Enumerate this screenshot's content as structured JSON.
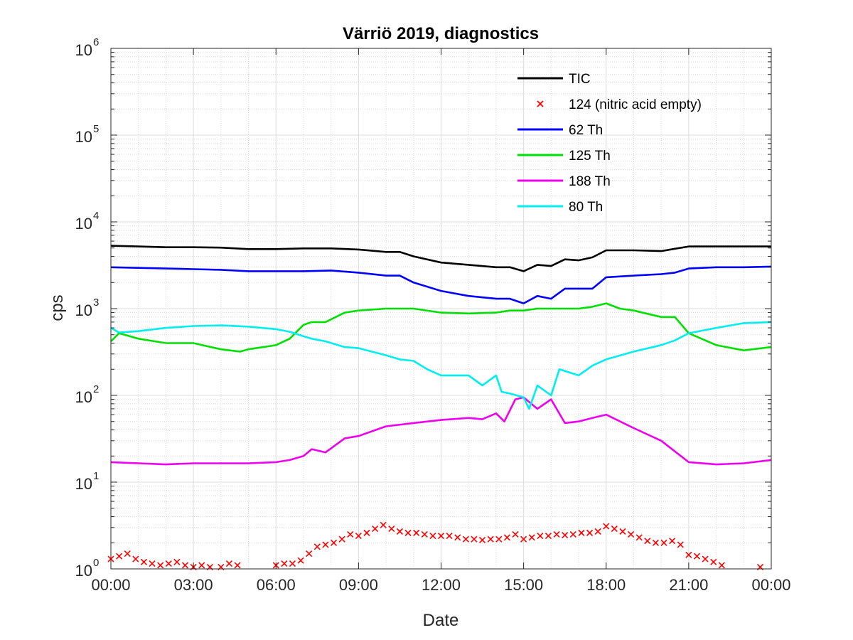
{
  "chart_data": {
    "type": "line",
    "title": "Värriö 2019, diagnostics",
    "xlabel": "Date",
    "ylabel": "cps",
    "yscale": "log",
    "ylim": [
      1,
      1000000
    ],
    "xlim": [
      0,
      24
    ],
    "x_tick_labels": [
      "00:00",
      "03:00",
      "06:00",
      "09:00",
      "12:00",
      "15:00",
      "18:00",
      "21:00",
      "00:00"
    ],
    "x_tick_hours": [
      0,
      3,
      6,
      9,
      12,
      15,
      18,
      21,
      24
    ],
    "y_tick_exponents": [
      "0",
      "1",
      "2",
      "3",
      "4",
      "5",
      "6"
    ],
    "y_tick_base": "10",
    "y_tick_values": [
      1,
      10,
      100,
      1000,
      10000,
      100000,
      1000000
    ],
    "grid": true,
    "minor_grid": true,
    "legend_position": "top-right",
    "series": [
      {
        "name": "TIC",
        "color": "#000000",
        "style": "line",
        "x": [
          0,
          1,
          2,
          3,
          4,
          5,
          6,
          7,
          8,
          9,
          10,
          10.5,
          11,
          12,
          13,
          14,
          14.5,
          15,
          15.5,
          16,
          16.5,
          17,
          17.5,
          18,
          19,
          20,
          20.5,
          21,
          22,
          23,
          24
        ],
        "y": [
          5300,
          5200,
          5100,
          5100,
          5050,
          4850,
          4850,
          4950,
          4950,
          4800,
          4500,
          4500,
          4000,
          3400,
          3200,
          3000,
          3000,
          2700,
          3200,
          3100,
          3700,
          3600,
          3900,
          4700,
          4700,
          4600,
          4900,
          5200,
          5200,
          5200,
          5200
        ]
      },
      {
        "name": "124 (nitric acid empty)",
        "color": "#ff0000",
        "style": "marker",
        "x": [
          0,
          0.3,
          0.6,
          0.9,
          1.2,
          1.5,
          1.8,
          2.1,
          2.4,
          2.7,
          3.0,
          3.3,
          3.6,
          4.0,
          4.3,
          4.6,
          6.0,
          6.3,
          6.6,
          6.9,
          7.2,
          7.5,
          7.8,
          8.1,
          8.4,
          8.7,
          9.0,
          9.3,
          9.6,
          9.9,
          10.2,
          10.5,
          10.8,
          11.1,
          11.4,
          11.7,
          12.0,
          12.3,
          12.6,
          12.9,
          13.2,
          13.5,
          13.8,
          14.1,
          14.4,
          14.7,
          15.0,
          15.3,
          15.6,
          15.9,
          16.2,
          16.5,
          16.8,
          17.1,
          17.4,
          17.7,
          18.0,
          18.3,
          18.6,
          18.9,
          19.2,
          19.5,
          19.8,
          20.1,
          20.4,
          20.7,
          21.0,
          21.3,
          21.6,
          21.9,
          22.2,
          23.6
        ],
        "y": [
          1.3,
          1.4,
          1.5,
          1.3,
          1.2,
          1.15,
          1.1,
          1.15,
          1.2,
          1.1,
          1.05,
          1.1,
          1.05,
          1.05,
          1.15,
          1.1,
          1.1,
          1.15,
          1.15,
          1.25,
          1.5,
          1.8,
          1.9,
          2.0,
          2.2,
          2.5,
          2.4,
          2.6,
          2.9,
          3.2,
          2.9,
          2.7,
          2.6,
          2.6,
          2.5,
          2.4,
          2.4,
          2.4,
          2.3,
          2.2,
          2.2,
          2.15,
          2.2,
          2.2,
          2.3,
          2.5,
          2.2,
          2.3,
          2.4,
          2.4,
          2.5,
          2.45,
          2.5,
          2.6,
          2.6,
          2.7,
          3.1,
          2.9,
          2.7,
          2.5,
          2.3,
          2.1,
          2.0,
          2.0,
          2.1,
          1.9,
          1.45,
          1.4,
          1.3,
          1.2,
          1.1,
          1.05
        ]
      },
      {
        "name": "62 Th",
        "color": "#0000ff",
        "style": "line",
        "x": [
          0,
          1,
          2,
          3,
          4,
          5,
          6,
          7,
          8,
          9,
          10,
          10.5,
          11,
          12,
          13,
          14,
          14.5,
          15,
          15.5,
          16,
          16.5,
          17,
          17.5,
          18,
          19,
          20,
          20.5,
          21,
          22,
          23,
          24
        ],
        "y": [
          3000,
          2950,
          2900,
          2850,
          2800,
          2700,
          2700,
          2700,
          2750,
          2600,
          2400,
          2400,
          2000,
          1600,
          1400,
          1300,
          1300,
          1150,
          1400,
          1300,
          1700,
          1700,
          1700,
          2300,
          2400,
          2500,
          2600,
          2900,
          3000,
          3000,
          3050
        ]
      },
      {
        "name": "125 Th",
        "color": "#00e000",
        "style": "line",
        "x": [
          0,
          0.3,
          1,
          2,
          3,
          4,
          4.7,
          5,
          6,
          6.5,
          7,
          7.3,
          7.8,
          8.5,
          9,
          10,
          11,
          12,
          13,
          14,
          14.5,
          15,
          15.5,
          16,
          17,
          17.5,
          18,
          18.5,
          19,
          20,
          20.5,
          21,
          22,
          23,
          24
        ],
        "y": [
          420,
          520,
          450,
          400,
          400,
          340,
          320,
          340,
          380,
          450,
          650,
          700,
          700,
          900,
          950,
          1000,
          1000,
          900,
          880,
          900,
          950,
          950,
          1000,
          1000,
          1000,
          1050,
          1150,
          1000,
          950,
          800,
          800,
          520,
          380,
          330,
          360
        ]
      },
      {
        "name": "188 Th",
        "color": "#ee00ee",
        "style": "line",
        "x": [
          0,
          1,
          2,
          3,
          4,
          5,
          6,
          6.5,
          7,
          7.3,
          7.8,
          8.5,
          9,
          10,
          11,
          12,
          13,
          13.5,
          14,
          14.3,
          14.7,
          15,
          15.5,
          16,
          16.5,
          17,
          17.5,
          18,
          19,
          20,
          21,
          22,
          23,
          24
        ],
        "y": [
          17,
          16.5,
          16,
          16.5,
          16.5,
          16.5,
          17,
          18,
          20,
          24,
          22,
          32,
          34,
          44,
          48,
          52,
          55,
          53,
          62,
          50,
          90,
          95,
          70,
          90,
          48,
          50,
          55,
          60,
          42,
          30,
          17,
          16,
          16.5,
          18
        ]
      },
      {
        "name": "80 Th",
        "color": "#00eeee",
        "style": "line",
        "x": [
          0,
          0.3,
          1,
          2,
          3,
          4,
          5,
          6,
          6.5,
          7,
          7.3,
          7.8,
          8.5,
          9,
          10,
          10.5,
          11,
          11.5,
          12,
          13,
          13.5,
          14,
          14.2,
          14.5,
          15,
          15.2,
          15.5,
          16,
          16.3,
          17,
          17.5,
          18,
          19,
          20,
          20.5,
          21,
          22,
          23,
          24
        ],
        "y": [
          600,
          530,
          550,
          600,
          630,
          640,
          620,
          580,
          540,
          480,
          450,
          420,
          360,
          350,
          290,
          260,
          250,
          200,
          170,
          170,
          130,
          170,
          110,
          105,
          95,
          70,
          130,
          100,
          200,
          170,
          220,
          260,
          320,
          380,
          430,
          520,
          600,
          680,
          700
        ]
      }
    ]
  }
}
